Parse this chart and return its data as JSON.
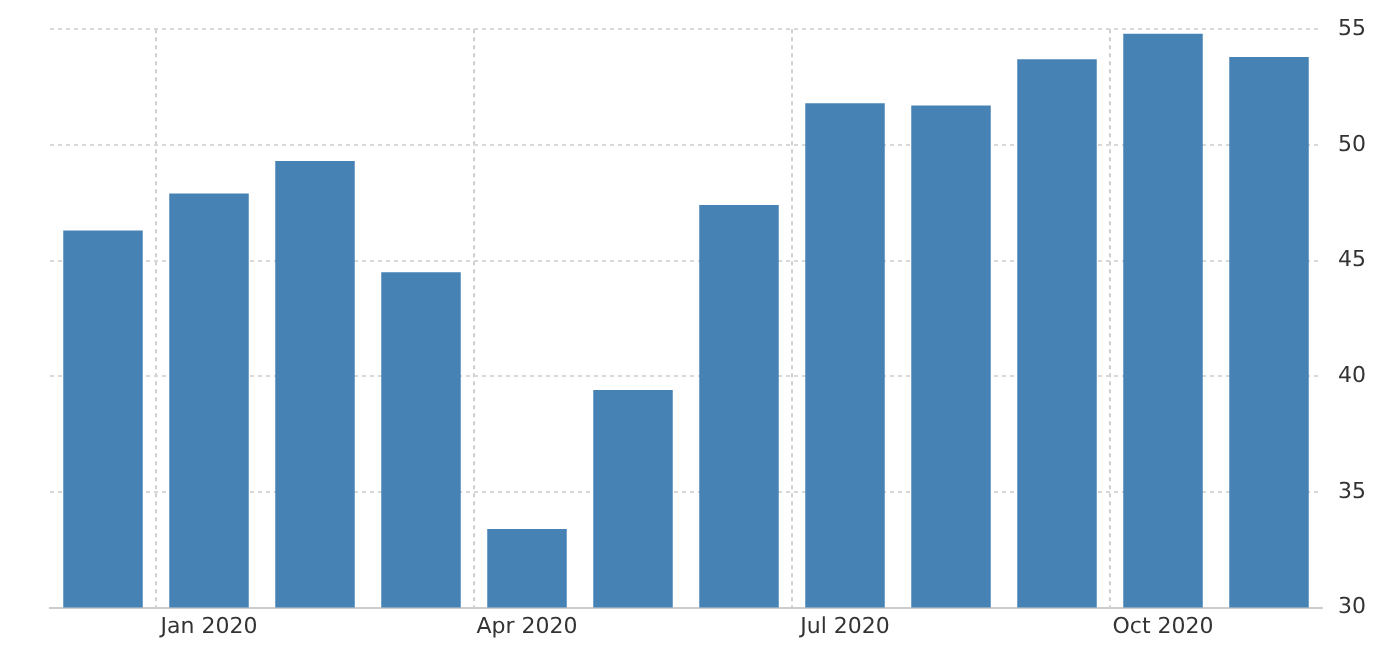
{
  "chart_data": {
    "type": "bar",
    "categories": [
      null,
      "Jan 2020",
      null,
      null,
      "Apr 2020",
      null,
      null,
      "Jul 2020",
      null,
      null,
      "Oct 2020",
      null
    ],
    "values": [
      46.3,
      47.9,
      49.3,
      44.5,
      33.4,
      39.4,
      47.4,
      51.8,
      51.7,
      53.7,
      54.8,
      53.8
    ],
    "color": "#4682b4",
    "ylim": [
      30,
      55
    ],
    "yticks": [
      30,
      35,
      40,
      45,
      50,
      55
    ],
    "grid": true,
    "legend": false
  }
}
